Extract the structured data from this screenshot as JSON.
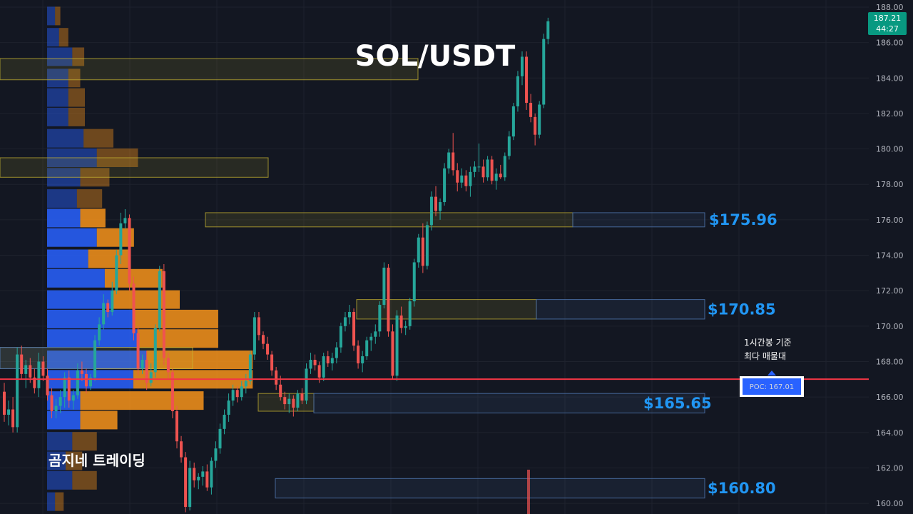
{
  "colors": {
    "background": "#131722",
    "grid": "#1e222d",
    "up": "#26a69a",
    "down": "#ef5350",
    "vp_up": "#2962ff",
    "vp_down": "#f7931a",
    "poc_line": "#f23645",
    "zone_yellow": "#c8b432",
    "zone_blue": "#4a6fa5",
    "label_blue": "#2196f3",
    "price_tag": "#089981"
  },
  "title": "SOL/USDT",
  "brand": "곰지네 트레이딩",
  "note": {
    "line1": "1시간봉 기준",
    "line2": "최다 매물대"
  },
  "poc": {
    "label": "POC: 167.01",
    "price": 167.01
  },
  "current_price": {
    "value": "187.21",
    "countdown": "44:27",
    "price": 187.21
  },
  "chart_data": {
    "type": "candlestick",
    "title": "SOL/USDT",
    "yaxis": {
      "ticks": [
        "160.00",
        "162.00",
        "164.00",
        "166.00",
        "168.00",
        "170.00",
        "172.00",
        "174.00",
        "176.00",
        "178.00",
        "180.00",
        "182.00",
        "184.00",
        "186.00",
        "188.00"
      ],
      "range": [
        159.4,
        188.2
      ],
      "side": "right"
    },
    "levels": [
      {
        "label": "$175.96",
        "low": 175.6,
        "high": 176.4
      },
      {
        "label": "$170.85",
        "low": 170.4,
        "high": 171.5
      },
      {
        "label": "$165.65",
        "low": 165.1,
        "high": 166.2
      },
      {
        "label": "$160.80",
        "low": 160.3,
        "high": 161.4
      }
    ],
    "supply_zones": [
      {
        "low": 183.9,
        "high": 185.1
      },
      {
        "low": 178.4,
        "high": 179.5
      },
      {
        "low": 175.6,
        "high": 176.4
      },
      {
        "low": 170.4,
        "high": 171.5
      },
      {
        "low": 165.2,
        "high": 166.2
      },
      {
        "low": 167.6,
        "high": 168.8
      }
    ],
    "volume_profile": [
      {
        "price": 187.5,
        "up": 12,
        "down": 8
      },
      {
        "price": 186.3,
        "up": 18,
        "down": 14
      },
      {
        "price": 185.2,
        "up": 38,
        "down": 18
      },
      {
        "price": 184.0,
        "up": 32,
        "down": 18
      },
      {
        "price": 182.9,
        "up": 32,
        "down": 25
      },
      {
        "price": 181.8,
        "up": 32,
        "down": 25
      },
      {
        "price": 180.6,
        "up": 55,
        "down": 45
      },
      {
        "price": 179.5,
        "up": 75,
        "down": 62
      },
      {
        "price": 178.4,
        "up": 50,
        "down": 44
      },
      {
        "price": 177.2,
        "up": 45,
        "down": 38
      },
      {
        "price": 176.1,
        "up": 50,
        "down": 38
      },
      {
        "price": 175.0,
        "up": 75,
        "down": 56
      },
      {
        "price": 173.8,
        "up": 62,
        "down": 62
      },
      {
        "price": 172.7,
        "up": 87,
        "down": 87
      },
      {
        "price": 171.5,
        "up": 100,
        "down": 100
      },
      {
        "price": 170.4,
        "up": 130,
        "down": 128
      },
      {
        "price": 169.3,
        "up": 136,
        "down": 122
      },
      {
        "price": 168.1,
        "up": 150,
        "down": 160
      },
      {
        "price": 167.0,
        "up": 130,
        "down": 180
      },
      {
        "price": 165.8,
        "up": 50,
        "down": 186
      },
      {
        "price": 164.7,
        "up": 50,
        "down": 56
      },
      {
        "price": 163.5,
        "up": 38,
        "down": 37
      },
      {
        "price": 162.4,
        "up": 28,
        "down": 25
      },
      {
        "price": 161.3,
        "up": 38,
        "down": 37
      },
      {
        "price": 160.1,
        "up": 12,
        "down": 13
      }
    ],
    "candles": [
      [
        166.3,
        166.8,
        164.6,
        165.0
      ],
      [
        165.0,
        165.8,
        164.4,
        165.3
      ],
      [
        165.3,
        166.0,
        164.0,
        164.3
      ],
      [
        164.3,
        168.8,
        164.0,
        168.4
      ],
      [
        168.4,
        168.9,
        167.0,
        167.3
      ],
      [
        167.3,
        168.1,
        166.5,
        167.8
      ],
      [
        167.8,
        168.2,
        166.8,
        167.1
      ],
      [
        167.1,
        167.6,
        166.2,
        166.5
      ],
      [
        166.5,
        168.5,
        166.0,
        168.0
      ],
      [
        168.0,
        168.3,
        166.9,
        167.2
      ],
      [
        167.2,
        167.6,
        165.8,
        166.1
      ],
      [
        166.1,
        166.5,
        164.8,
        165.2
      ],
      [
        165.2,
        165.9,
        164.8,
        165.5
      ],
      [
        165.5,
        166.4,
        165.1,
        166.0
      ],
      [
        166.0,
        167.4,
        165.4,
        167.1
      ],
      [
        167.1,
        167.5,
        165.4,
        165.8
      ],
      [
        165.8,
        166.4,
        165.3,
        166.1
      ],
      [
        166.1,
        167.9,
        165.9,
        167.5
      ],
      [
        167.5,
        168.0,
        166.9,
        167.3
      ],
      [
        167.3,
        167.6,
        166.2,
        166.6
      ],
      [
        166.6,
        167.3,
        166.4,
        167.1
      ],
      [
        167.1,
        169.5,
        166.9,
        169.2
      ],
      [
        169.2,
        170.5,
        168.9,
        170.1
      ],
      [
        170.1,
        171.8,
        169.8,
        171.3
      ],
      [
        171.3,
        171.5,
        170.5,
        170.8
      ],
      [
        170.8,
        172.5,
        170.6,
        172.0
      ],
      [
        172.0,
        174.3,
        171.8,
        174.0
      ],
      [
        174.0,
        176.4,
        173.5,
        175.8
      ],
      [
        175.8,
        176.6,
        175.5,
        176.1
      ],
      [
        176.1,
        176.3,
        172.0,
        172.4
      ],
      [
        172.4,
        172.8,
        169.2,
        169.6
      ],
      [
        169.6,
        170.0,
        167.2,
        167.6
      ],
      [
        167.6,
        168.4,
        167.3,
        168.1
      ],
      [
        168.1,
        168.6,
        166.4,
        166.8
      ],
      [
        166.8,
        167.9,
        166.6,
        167.4
      ],
      [
        167.4,
        170.1,
        167.1,
        169.9
      ],
      [
        169.9,
        173.4,
        169.7,
        173.1
      ],
      [
        173.1,
        173.5,
        167.8,
        168.2
      ],
      [
        168.2,
        168.5,
        167.0,
        167.4
      ],
      [
        167.4,
        167.6,
        164.8,
        165.2
      ],
      [
        165.2,
        165.5,
        163.1,
        163.5
      ],
      [
        163.5,
        163.8,
        162.3,
        162.6
      ],
      [
        162.6,
        162.9,
        159.5,
        159.8
      ],
      [
        159.8,
        162.4,
        159.6,
        162.0
      ],
      [
        162.0,
        162.3,
        160.9,
        161.3
      ],
      [
        161.3,
        161.7,
        160.8,
        161.5
      ],
      [
        161.5,
        162.1,
        161.0,
        161.8
      ],
      [
        161.8,
        162.2,
        160.7,
        160.9
      ],
      [
        160.9,
        162.6,
        160.5,
        162.4
      ],
      [
        162.4,
        163.5,
        162.0,
        163.1
      ],
      [
        163.1,
        164.5,
        162.8,
        164.2
      ],
      [
        164.2,
        165.3,
        163.9,
        165.0
      ],
      [
        165.0,
        166.2,
        164.6,
        165.8
      ],
      [
        165.8,
        166.7,
        165.5,
        166.4
      ],
      [
        166.4,
        166.6,
        165.7,
        166.0
      ],
      [
        166.0,
        166.9,
        165.8,
        166.6
      ],
      [
        166.6,
        167.3,
        166.2,
        166.9
      ],
      [
        166.9,
        168.6,
        166.7,
        168.4
      ],
      [
        168.4,
        170.8,
        168.1,
        170.5
      ],
      [
        170.5,
        170.8,
        169.2,
        169.5
      ],
      [
        169.5,
        169.7,
        168.7,
        169.0
      ],
      [
        169.0,
        169.4,
        168.1,
        168.4
      ],
      [
        168.4,
        168.6,
        167.2,
        167.5
      ],
      [
        167.5,
        167.7,
        166.4,
        166.7
      ],
      [
        166.7,
        167.2,
        165.8,
        166.0
      ],
      [
        166.0,
        166.3,
        165.3,
        165.6
      ],
      [
        165.6,
        166.2,
        165.1,
        165.9
      ],
      [
        165.9,
        166.1,
        164.9,
        165.4
      ],
      [
        165.4,
        166.4,
        165.2,
        166.2
      ],
      [
        166.2,
        166.5,
        165.6,
        165.8
      ],
      [
        165.8,
        167.9,
        165.6,
        167.6
      ],
      [
        167.6,
        168.5,
        167.3,
        168.1
      ],
      [
        168.1,
        168.4,
        167.5,
        167.8
      ],
      [
        167.8,
        168.0,
        166.8,
        167.1
      ],
      [
        167.1,
        168.5,
        166.9,
        168.3
      ],
      [
        168.3,
        168.6,
        167.7,
        167.9
      ],
      [
        167.9,
        168.5,
        167.5,
        168.2
      ],
      [
        168.2,
        169.1,
        167.9,
        168.8
      ],
      [
        168.8,
        170.2,
        168.5,
        170.0
      ],
      [
        170.0,
        170.8,
        169.7,
        170.5
      ],
      [
        170.5,
        171.2,
        170.1,
        170.8
      ],
      [
        170.8,
        171.0,
        168.6,
        168.9
      ],
      [
        168.9,
        169.2,
        167.6,
        167.9
      ],
      [
        167.9,
        168.6,
        167.4,
        168.3
      ],
      [
        168.3,
        169.4,
        168.1,
        169.2
      ],
      [
        169.2,
        169.6,
        168.6,
        169.4
      ],
      [
        169.4,
        170.1,
        169.0,
        169.7
      ],
      [
        169.7,
        171.4,
        169.4,
        171.2
      ],
      [
        171.2,
        173.6,
        171.0,
        173.3
      ],
      [
        173.3,
        173.5,
        169.4,
        169.7
      ],
      [
        169.7,
        170.1,
        167.0,
        167.2
      ],
      [
        167.2,
        170.9,
        166.9,
        170.6
      ],
      [
        170.6,
        171.1,
        169.6,
        169.9
      ],
      [
        169.9,
        170.3,
        169.5,
        170.0
      ],
      [
        170.0,
        171.6,
        169.8,
        171.4
      ],
      [
        171.4,
        173.8,
        171.1,
        173.6
      ],
      [
        173.6,
        175.2,
        173.3,
        175.0
      ],
      [
        175.0,
        175.8,
        173.0,
        173.4
      ],
      [
        173.4,
        175.9,
        173.2,
        175.7
      ],
      [
        175.7,
        177.6,
        175.4,
        177.3
      ],
      [
        177.3,
        177.9,
        176.2,
        176.5
      ],
      [
        176.5,
        177.2,
        176.0,
        177.0
      ],
      [
        177.0,
        179.2,
        176.8,
        178.9
      ],
      [
        178.9,
        180.0,
        178.6,
        179.8
      ],
      [
        179.8,
        180.9,
        178.5,
        178.8
      ],
      [
        178.8,
        179.2,
        177.6,
        178.1
      ],
      [
        178.1,
        178.9,
        177.8,
        178.5
      ],
      [
        178.5,
        178.8,
        177.6,
        177.9
      ],
      [
        177.9,
        179.0,
        177.3,
        178.7
      ],
      [
        178.7,
        179.3,
        178.4,
        179.0
      ],
      [
        179.0,
        180.3,
        178.7,
        179.0
      ],
      [
        179.0,
        179.4,
        178.1,
        178.4
      ],
      [
        178.4,
        179.6,
        178.2,
        179.4
      ],
      [
        179.4,
        179.6,
        178.0,
        178.2
      ],
      [
        178.2,
        178.9,
        177.7,
        178.6
      ],
      [
        178.6,
        179.1,
        178.3,
        178.4
      ],
      [
        178.4,
        179.8,
        178.2,
        179.6
      ],
      [
        179.6,
        181.0,
        179.4,
        180.7
      ],
      [
        180.7,
        182.6,
        180.5,
        182.4
      ],
      [
        182.4,
        184.4,
        182.1,
        184.1
      ],
      [
        184.1,
        185.5,
        183.6,
        185.2
      ],
      [
        185.2,
        185.5,
        182.2,
        182.6
      ],
      [
        182.6,
        183.1,
        181.5,
        181.8
      ],
      [
        181.8,
        182.0,
        180.2,
        180.8
      ],
      [
        180.8,
        182.7,
        180.6,
        182.5
      ],
      [
        182.5,
        186.5,
        182.3,
        186.2
      ],
      [
        186.2,
        187.4,
        185.9,
        187.2
      ]
    ]
  }
}
